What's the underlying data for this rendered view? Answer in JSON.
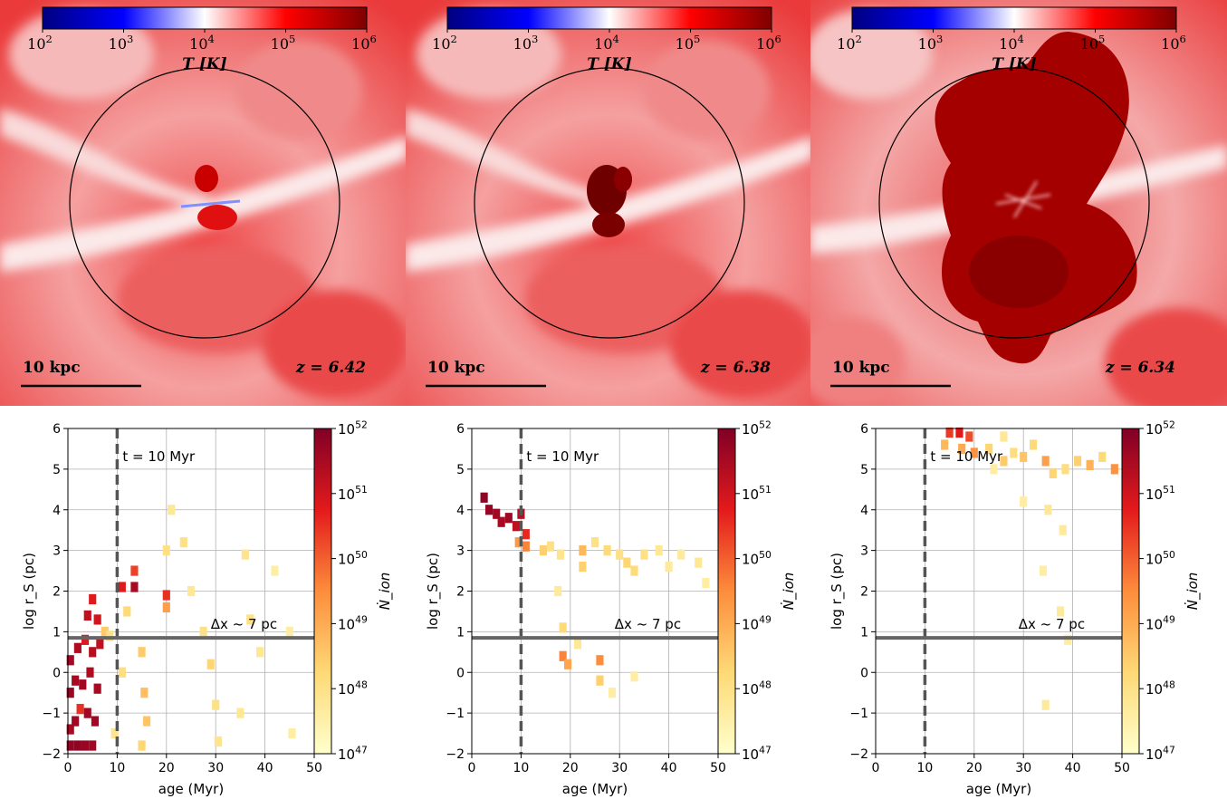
{
  "temperature_maps": {
    "colorbar": {
      "label": "T [K]",
      "ticks": [
        "10^2",
        "10^3",
        "10^4",
        "10^5",
        "10^6"
      ],
      "colors": [
        "#00007f",
        "#0000ff",
        "#ffffff",
        "#ff0000",
        "#7f0000"
      ]
    },
    "scale_bar_label": "10 kpc",
    "panels": [
      {
        "redshift": "z = 6.42"
      },
      {
        "redshift": "z = 6.38"
      },
      {
        "redshift": "z = 6.34"
      }
    ]
  },
  "chart_data": [
    {
      "type": "heatmap",
      "xlabel": "age (Myr)",
      "ylabel": "log r_S (pc)",
      "xlim": [
        0,
        50
      ],
      "ylim": [
        -2,
        6
      ],
      "xticks": [
        0,
        10,
        20,
        30,
        40,
        50
      ],
      "yticks": [
        -2,
        -1,
        0,
        1,
        2,
        3,
        4,
        5,
        6
      ],
      "grid": true,
      "colorbar": {
        "label": "Ṅ_ion",
        "scale": "log",
        "range": [
          47,
          52
        ],
        "ticks": [
          "10^47",
          "10^48",
          "10^49",
          "10^50",
          "10^51",
          "10^52"
        ]
      },
      "annotations": [
        {
          "text": "t = 10 Myr",
          "vline_x": 10
        },
        {
          "text": "Δx ~ 7 pc",
          "hline_y": 0.85
        }
      ],
      "cells": [
        [
          0.5,
          -1.8,
          51.8
        ],
        [
          2,
          -1.8,
          51.8
        ],
        [
          3.5,
          -1.8,
          51.7
        ],
        [
          5,
          -1.8,
          51.6
        ],
        [
          0.5,
          -1.4,
          51.5
        ],
        [
          1.5,
          -1.2,
          51.6
        ],
        [
          2.5,
          -0.9,
          50.5
        ],
        [
          4,
          -1,
          51.6
        ],
        [
          5.5,
          -1.2,
          51.6
        ],
        [
          0.5,
          -0.5,
          51.7
        ],
        [
          1.5,
          -0.2,
          51.5
        ],
        [
          3,
          -0.3,
          51.6
        ],
        [
          4.5,
          0,
          51.4
        ],
        [
          6,
          -0.4,
          51.5
        ],
        [
          0.5,
          0.3,
          51.6
        ],
        [
          2,
          0.6,
          51.4
        ],
        [
          3.5,
          0.8,
          50.8
        ],
        [
          5,
          0.5,
          51.3
        ],
        [
          6.5,
          0.7,
          51.2
        ],
        [
          4,
          1.4,
          51.2
        ],
        [
          5,
          1.8,
          50.8
        ],
        [
          6,
          1.3,
          51
        ],
        [
          7.5,
          1,
          48.5
        ],
        [
          8.5,
          0.9,
          48
        ],
        [
          11,
          2.1,
          50.8
        ],
        [
          13.5,
          2.1,
          51.5
        ],
        [
          13.5,
          2.5,
          50.3
        ],
        [
          12,
          1.5,
          48.2
        ],
        [
          20,
          1.9,
          50.5
        ],
        [
          20,
          1.6,
          49.2
        ],
        [
          15,
          0.5,
          48.5
        ],
        [
          15.5,
          -0.5,
          48.7
        ],
        [
          16,
          -1.2,
          48.6
        ],
        [
          15,
          -1.8,
          48.3
        ],
        [
          20,
          3,
          48
        ],
        [
          21,
          4,
          47.8
        ],
        [
          23.5,
          3.2,
          48
        ],
        [
          25,
          2,
          47.8
        ],
        [
          27.5,
          1,
          48
        ],
        [
          29,
          0.2,
          48.3
        ],
        [
          30,
          -0.8,
          48
        ],
        [
          30.5,
          -1.7,
          47.9
        ],
        [
          36,
          2.9,
          47.9
        ],
        [
          37,
          1.3,
          48
        ],
        [
          39,
          0.5,
          47.8
        ],
        [
          35,
          -1,
          47.8
        ],
        [
          42,
          2.5,
          47.6
        ],
        [
          45,
          1,
          47.6
        ],
        [
          45.5,
          -1.5,
          47.6
        ],
        [
          11,
          0,
          48.1
        ],
        [
          9.5,
          -1.5,
          47.9
        ]
      ]
    },
    {
      "type": "heatmap",
      "xlabel": "age (Myr)",
      "ylabel": "log r_S (pc)",
      "xlim": [
        0,
        50
      ],
      "ylim": [
        -2,
        6
      ],
      "xticks": [
        0,
        10,
        20,
        30,
        40,
        50
      ],
      "yticks": [
        -2,
        -1,
        0,
        1,
        2,
        3,
        4,
        5,
        6
      ],
      "grid": true,
      "colorbar": {
        "label": "Ṅ_ion",
        "scale": "log",
        "range": [
          47,
          52
        ],
        "ticks": [
          "10^47",
          "10^48",
          "10^49",
          "10^50",
          "10^51",
          "10^52"
        ]
      },
      "annotations": [
        {
          "text": "t = 10 Myr",
          "vline_x": 10
        },
        {
          "text": "Δx ~ 7 pc",
          "hline_y": 0.85
        }
      ],
      "cells": [
        [
          2.5,
          4.3,
          51.8
        ],
        [
          3.5,
          4,
          51.7
        ],
        [
          5,
          3.9,
          51.6
        ],
        [
          6,
          3.7,
          51.5
        ],
        [
          7.5,
          3.8,
          51.6
        ],
        [
          9,
          3.6,
          51.2
        ],
        [
          10,
          3.9,
          51.3
        ],
        [
          11,
          3.4,
          50.6
        ],
        [
          11,
          3.1,
          49.6
        ],
        [
          9.5,
          3.2,
          49.3
        ],
        [
          14.5,
          3,
          48.4
        ],
        [
          16,
          3.1,
          48
        ],
        [
          18,
          2.9,
          47.9
        ],
        [
          22.5,
          3,
          48.8
        ],
        [
          22.5,
          2.6,
          48.4
        ],
        [
          25,
          3.2,
          48
        ],
        [
          27.5,
          3,
          48.2
        ],
        [
          30,
          2.9,
          48
        ],
        [
          31.5,
          2.7,
          48.3
        ],
        [
          33,
          2.5,
          48.2
        ],
        [
          35,
          2.9,
          48
        ],
        [
          38,
          3,
          47.8
        ],
        [
          40,
          2.6,
          47.7
        ],
        [
          42.5,
          2.9,
          47.7
        ],
        [
          46,
          2.7,
          47.8
        ],
        [
          47.5,
          2.2,
          47.6
        ],
        [
          18.5,
          1.1,
          48.2
        ],
        [
          18.5,
          0.4,
          49.6
        ],
        [
          19.5,
          0.2,
          49.1
        ],
        [
          26,
          0.3,
          49.5
        ],
        [
          26,
          -0.2,
          48.4
        ],
        [
          21.5,
          0.7,
          47.8
        ],
        [
          33,
          -0.1,
          47.6
        ],
        [
          17.5,
          2,
          47.7
        ],
        [
          28.5,
          -0.5,
          47.6
        ]
      ]
    },
    {
      "type": "heatmap",
      "xlabel": "age (Myr)",
      "ylabel": "log r_S (pc)",
      "xlim": [
        0,
        50
      ],
      "ylim": [
        -2,
        6
      ],
      "xticks": [
        0,
        10,
        20,
        30,
        40,
        50
      ],
      "yticks": [
        -2,
        -1,
        0,
        1,
        2,
        3,
        4,
        5,
        6
      ],
      "grid": true,
      "colorbar": {
        "label": "Ṅ_ion",
        "scale": "log",
        "range": [
          47,
          52
        ],
        "ticks": [
          "10^47",
          "10^48",
          "10^49",
          "10^50",
          "10^51",
          "10^52"
        ]
      },
      "annotations": [
        {
          "text": "t = 10 Myr",
          "vline_x": 10
        },
        {
          "text": "Δx ~ 7 pc",
          "hline_y": 0.85
        }
      ],
      "cells": [
        [
          15,
          5.9,
          50.4
        ],
        [
          17,
          5.9,
          50.8
        ],
        [
          19,
          5.8,
          50.2
        ],
        [
          14,
          5.6,
          48.8
        ],
        [
          17.5,
          5.5,
          49
        ],
        [
          20,
          5.4,
          49.4
        ],
        [
          23,
          5.5,
          48.3
        ],
        [
          26,
          5.2,
          48.5
        ],
        [
          28,
          5.4,
          48.1
        ],
        [
          30,
          5.3,
          48.6
        ],
        [
          32,
          5.6,
          48.2
        ],
        [
          34.5,
          5.2,
          49.2
        ],
        [
          36,
          4.9,
          48.3
        ],
        [
          38.5,
          5,
          48.1
        ],
        [
          41,
          5.2,
          48.4
        ],
        [
          43.5,
          5.1,
          48.9
        ],
        [
          46,
          5.3,
          48.2
        ],
        [
          48.5,
          5,
          49.4
        ],
        [
          35,
          4,
          47.8
        ],
        [
          38,
          3.5,
          47.7
        ],
        [
          30,
          4.2,
          47.6
        ],
        [
          34,
          2.5,
          47.6
        ],
        [
          37.5,
          1.5,
          47.7
        ],
        [
          39,
          0.8,
          47.6
        ],
        [
          26,
          5.8,
          47.8
        ],
        [
          24,
          5,
          47.6
        ],
        [
          34.5,
          -0.8,
          47.7
        ]
      ]
    }
  ]
}
